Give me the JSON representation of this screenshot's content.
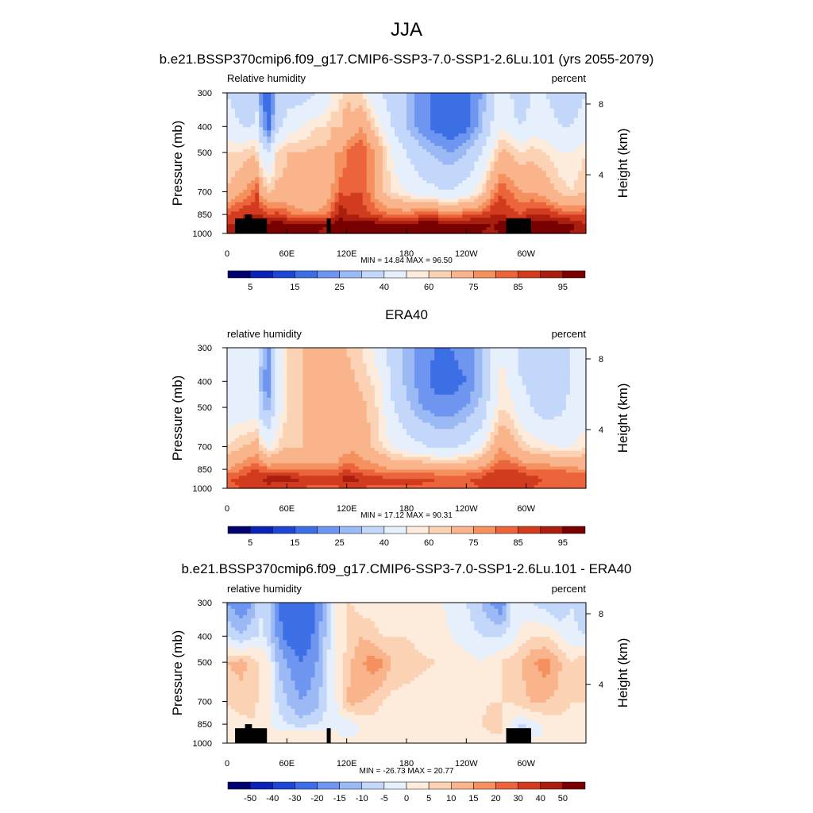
{
  "page": {
    "title": "JJA"
  },
  "palettes": {
    "rh": [
      "#00006e",
      "#0a23b4",
      "#1e46d2",
      "#3c6ee6",
      "#6e96f0",
      "#9bb9f5",
      "#c3d7fa",
      "#e6effc",
      "#fdebdb",
      "#fcd2b4",
      "#fab48c",
      "#f5915f",
      "#eb643c",
      "#d23c1e",
      "#aa1e0f",
      "#780000"
    ],
    "diff": [
      "#00006e",
      "#0a23b4",
      "#1e46d2",
      "#3c6ee6",
      "#6e96f0",
      "#9bb9f5",
      "#c3d7fa",
      "#e6effc",
      "#fdebdb",
      "#fcd2b4",
      "#fab48c",
      "#f5915f",
      "#eb643c",
      "#d23c1e",
      "#aa1e0f",
      "#780000"
    ]
  },
  "chart_data": [
    {
      "type": "heatmap",
      "title": "b.e21.BSSP370cmip6.f09_g17.CMIP6-SSP3-7.0-SSP1-2.6Lu.101 (yrs 2055-2079)",
      "left_string": "Relative humidity",
      "right_string": "percent",
      "ylabel": "Pressure (mb)",
      "y2label": "Height (km)",
      "x_ticks": [
        "0",
        "60E",
        "120E",
        "180",
        "120W",
        "60W"
      ],
      "y_ticks": [
        "300",
        "400",
        "500",
        "700",
        "850",
        "1000"
      ],
      "y2_ticks": [
        "8",
        "4"
      ],
      "ylim": [
        1000,
        300
      ],
      "stats": "MIN =  14.84  MAX =  96.50",
      "colorbar_labels": [
        "5",
        "15",
        "25",
        "40",
        "60",
        "75",
        "85",
        "95"
      ],
      "field_levels": [
        5,
        10,
        15,
        20,
        25,
        30,
        40,
        50,
        55,
        60,
        70,
        75,
        80,
        85,
        90,
        95
      ],
      "field": {
        "x": [
          0,
          15,
          25,
          30,
          35,
          42,
          50,
          60,
          75,
          90,
          100,
          105,
          110,
          115,
          120,
          125,
          135,
          145,
          155,
          165,
          180,
          195,
          210,
          225,
          240,
          255,
          265,
          275,
          285,
          295,
          305,
          320,
          335,
          345,
          360
        ],
        "p": [
          300,
          400,
          500,
          700,
          850,
          925,
          1000
        ],
        "rh": [
          [
            40,
            35,
            30,
            35,
            20,
            15,
            30,
            35,
            35,
            40,
            45,
            50,
            50,
            55,
            60,
            55,
            55,
            45,
            40,
            35,
            30,
            22,
            18,
            15,
            18,
            25,
            35,
            45,
            40,
            30,
            40,
            40,
            35,
            35,
            40
          ],
          [
            45,
            40,
            40,
            45,
            25,
            18,
            35,
            45,
            50,
            55,
            55,
            60,
            60,
            60,
            65,
            65,
            70,
            60,
            50,
            40,
            30,
            22,
            18,
            15,
            18,
            28,
            40,
            50,
            45,
            40,
            45,
            45,
            40,
            40,
            45
          ],
          [
            55,
            55,
            60,
            55,
            45,
            40,
            55,
            60,
            60,
            62,
            62,
            65,
            70,
            70,
            75,
            78,
            80,
            72,
            62,
            50,
            40,
            32,
            28,
            25,
            30,
            40,
            50,
            62,
            60,
            55,
            58,
            55,
            50,
            50,
            55
          ],
          [
            60,
            70,
            75,
            80,
            65,
            60,
            62,
            62,
            62,
            62,
            65,
            70,
            75,
            80,
            78,
            80,
            80,
            72,
            62,
            55,
            50,
            45,
            42,
            40,
            45,
            55,
            70,
            80,
            75,
            70,
            70,
            65,
            58,
            55,
            60
          ],
          [
            80,
            85,
            85,
            85,
            85,
            80,
            82,
            78,
            72,
            72,
            75,
            80,
            85,
            90,
            85,
            85,
            82,
            80,
            78,
            75,
            75,
            78,
            78,
            75,
            78,
            80,
            85,
            85,
            82,
            80,
            85,
            85,
            80,
            78,
            80
          ],
          [
            85,
            85,
            88,
            90,
            90,
            92,
            93,
            92,
            92,
            92,
            90,
            92,
            92,
            92,
            92,
            93,
            93,
            93,
            92,
            92,
            92,
            93,
            93,
            93,
            92,
            92,
            90,
            92,
            92,
            92,
            93,
            92,
            92,
            92,
            85
          ],
          [
            85,
            85,
            88,
            88,
            88,
            90,
            90,
            90,
            90,
            90,
            88,
            90,
            90,
            90,
            90,
            90,
            90,
            90,
            90,
            90,
            90,
            90,
            90,
            90,
            90,
            90,
            88,
            90,
            90,
            90,
            90,
            90,
            90,
            90,
            85
          ]
        ]
      },
      "masks": [
        {
          "lon_from": 8,
          "lon_to": 40,
          "p_top": 880
        },
        {
          "lon_from": 18,
          "lon_to": 25,
          "p_top": 850
        },
        {
          "lon_from": 100,
          "lon_to": 104,
          "p_top": 880
        },
        {
          "lon_from": 280,
          "lon_to": 305,
          "p_top": 880
        }
      ]
    },
    {
      "type": "heatmap",
      "title": "ERA40",
      "left_string": "relative humidity",
      "right_string": "percent",
      "ylabel": "Pressure (mb)",
      "y2label": "Height (km)",
      "x_ticks": [
        "0",
        "60E",
        "120E",
        "180",
        "120W",
        "60W"
      ],
      "y_ticks": [
        "300",
        "400",
        "500",
        "700",
        "850",
        "1000"
      ],
      "y2_ticks": [
        "8",
        "4"
      ],
      "ylim": [
        1000,
        300
      ],
      "stats": "MIN =  17.12  MAX =  90.31",
      "colorbar_labels": [
        "5",
        "15",
        "25",
        "40",
        "60",
        "75",
        "85",
        "95"
      ],
      "field_levels": [
        5,
        10,
        15,
        20,
        25,
        30,
        40,
        50,
        55,
        60,
        70,
        75,
        80,
        85,
        90,
        95
      ],
      "field": {
        "x": [
          0,
          15,
          25,
          30,
          35,
          42,
          50,
          60,
          75,
          90,
          100,
          105,
          110,
          115,
          120,
          125,
          135,
          145,
          155,
          165,
          180,
          195,
          210,
          225,
          240,
          255,
          265,
          275,
          285,
          295,
          305,
          320,
          335,
          345,
          360
        ],
        "p": [
          300,
          400,
          500,
          700,
          850,
          925,
          1000
        ],
        "rh": [
          [
            40,
            40,
            40,
            40,
            30,
            25,
            40,
            55,
            60,
            62,
            62,
            62,
            62,
            62,
            60,
            58,
            55,
            50,
            45,
            35,
            28,
            22,
            20,
            20,
            22,
            28,
            40,
            50,
            45,
            35,
            38,
            40,
            40,
            40,
            40
          ],
          [
            45,
            40,
            40,
            40,
            25,
            20,
            40,
            55,
            60,
            62,
            62,
            62,
            62,
            62,
            62,
            62,
            58,
            55,
            50,
            38,
            28,
            22,
            18,
            18,
            20,
            28,
            42,
            52,
            48,
            40,
            38,
            38,
            38,
            40,
            45
          ],
          [
            45,
            45,
            45,
            45,
            30,
            28,
            45,
            55,
            60,
            62,
            62,
            62,
            62,
            62,
            65,
            68,
            62,
            58,
            52,
            42,
            32,
            25,
            22,
            22,
            25,
            32,
            45,
            55,
            52,
            45,
            40,
            35,
            38,
            42,
            45
          ],
          [
            55,
            60,
            62,
            65,
            55,
            50,
            55,
            60,
            60,
            60,
            60,
            60,
            60,
            65,
            65,
            68,
            65,
            60,
            55,
            50,
            45,
            42,
            38,
            38,
            42,
            50,
            60,
            70,
            65,
            58,
            55,
            52,
            50,
            50,
            55
          ],
          [
            70,
            75,
            80,
            80,
            78,
            75,
            75,
            75,
            75,
            75,
            75,
            75,
            75,
            78,
            80,
            78,
            75,
            75,
            72,
            70,
            70,
            70,
            70,
            70,
            70,
            72,
            78,
            80,
            80,
            78,
            75,
            75,
            75,
            72,
            70
          ],
          [
            80,
            82,
            85,
            85,
            85,
            88,
            88,
            88,
            85,
            82,
            82,
            82,
            82,
            85,
            88,
            88,
            85,
            82,
            82,
            82,
            82,
            82,
            80,
            80,
            80,
            82,
            85,
            85,
            85,
            85,
            82,
            80,
            80,
            80,
            80
          ],
          [
            78,
            80,
            82,
            82,
            82,
            82,
            80,
            80,
            80,
            78,
            78,
            78,
            78,
            80,
            80,
            80,
            80,
            78,
            78,
            78,
            78,
            78,
            78,
            78,
            78,
            80,
            82,
            82,
            82,
            82,
            80,
            78,
            78,
            78,
            78
          ]
        ]
      },
      "masks": []
    },
    {
      "type": "heatmap",
      "title": "b.e21.BSSP370cmip6.f09_g17.CMIP6-SSP3-7.0-SSP1-2.6Lu.101 - ERA40",
      "left_string": "relative humidity",
      "right_string": "percent",
      "ylabel": "Pressure (mb)",
      "y2label": "Height (km)",
      "x_ticks": [
        "0",
        "60E",
        "120E",
        "180",
        "120W",
        "60W"
      ],
      "y_ticks": [
        "300",
        "400",
        "500",
        "700",
        "850",
        "1000"
      ],
      "y2_ticks": [
        "8",
        "4"
      ],
      "ylim": [
        1000,
        300
      ],
      "stats": "MIN = -26.73  MAX =  20.77",
      "colorbar_labels": [
        "-50",
        "-40",
        "-30",
        "-20",
        "-15",
        "-10",
        "-5",
        "0",
        "5",
        "10",
        "15",
        "20",
        "30",
        "40",
        "50"
      ],
      "field_levels": [
        -50,
        -40,
        -30,
        -20,
        -15,
        -10,
        -5,
        0,
        5,
        10,
        15,
        20,
        30,
        40,
        50
      ],
      "field": {
        "x": [
          0,
          15,
          25,
          30,
          35,
          42,
          50,
          60,
          75,
          90,
          100,
          105,
          110,
          115,
          120,
          125,
          135,
          145,
          155,
          165,
          180,
          195,
          210,
          225,
          240,
          255,
          265,
          275,
          285,
          295,
          305,
          320,
          335,
          345,
          360
        ],
        "p": [
          300,
          400,
          500,
          700,
          850,
          925,
          1000
        ],
        "rh": [
          [
            -15,
            -20,
            -15,
            -10,
            -5,
            -10,
            -20,
            -25,
            -25,
            -20,
            -10,
            -5,
            0,
            2,
            5,
            5,
            2,
            2,
            2,
            2,
            2,
            2,
            2,
            -2,
            -5,
            -10,
            -15,
            -20,
            -5,
            -3,
            -5,
            -8,
            -10,
            -5,
            -10
          ],
          [
            -5,
            -10,
            -5,
            -5,
            -3,
            -8,
            -15,
            -22,
            -25,
            -18,
            -8,
            -3,
            0,
            2,
            5,
            8,
            10,
            8,
            5,
            5,
            5,
            3,
            2,
            0,
            -2,
            -5,
            -5,
            -5,
            -3,
            2,
            5,
            5,
            0,
            -3,
            -5
          ],
          [
            10,
            12,
            8,
            5,
            5,
            0,
            -10,
            -15,
            -20,
            -15,
            -5,
            -2,
            0,
            3,
            8,
            10,
            14,
            18,
            16,
            10,
            8,
            6,
            5,
            3,
            2,
            0,
            2,
            5,
            8,
            10,
            14,
            18,
            10,
            5,
            10
          ],
          [
            5,
            8,
            6,
            5,
            3,
            2,
            -5,
            -10,
            -15,
            -12,
            -5,
            -2,
            0,
            5,
            10,
            12,
            10,
            8,
            5,
            3,
            2,
            2,
            2,
            2,
            2,
            3,
            5,
            5,
            5,
            8,
            10,
            10,
            8,
            5,
            5
          ],
          [
            2,
            3,
            5,
            3,
            2,
            0,
            -3,
            -5,
            -8,
            -5,
            -3,
            -2,
            -2,
            -3,
            -5,
            -3,
            2,
            3,
            3,
            2,
            2,
            2,
            2,
            2,
            3,
            5,
            8,
            5,
            0,
            -5,
            -3,
            2,
            3,
            2,
            2
          ],
          [
            2,
            2,
            2,
            2,
            2,
            2,
            2,
            3,
            3,
            2,
            2,
            2,
            2,
            -2,
            -3,
            -2,
            2,
            3,
            3,
            2,
            2,
            3,
            3,
            3,
            3,
            3,
            5,
            5,
            -2,
            -10,
            -5,
            2,
            3,
            3,
            2
          ],
          [
            3,
            3,
            3,
            3,
            3,
            3,
            3,
            3,
            3,
            3,
            3,
            3,
            3,
            3,
            3,
            3,
            3,
            3,
            3,
            3,
            3,
            3,
            3,
            3,
            3,
            3,
            3,
            3,
            3,
            3,
            3,
            3,
            3,
            3,
            3
          ]
        ]
      },
      "masks": [
        {
          "lon_from": 8,
          "lon_to": 40,
          "p_top": 880
        },
        {
          "lon_from": 18,
          "lon_to": 25,
          "p_top": 850
        },
        {
          "lon_from": 100,
          "lon_to": 104,
          "p_top": 880
        },
        {
          "lon_from": 280,
          "lon_to": 305,
          "p_top": 880
        }
      ]
    }
  ]
}
